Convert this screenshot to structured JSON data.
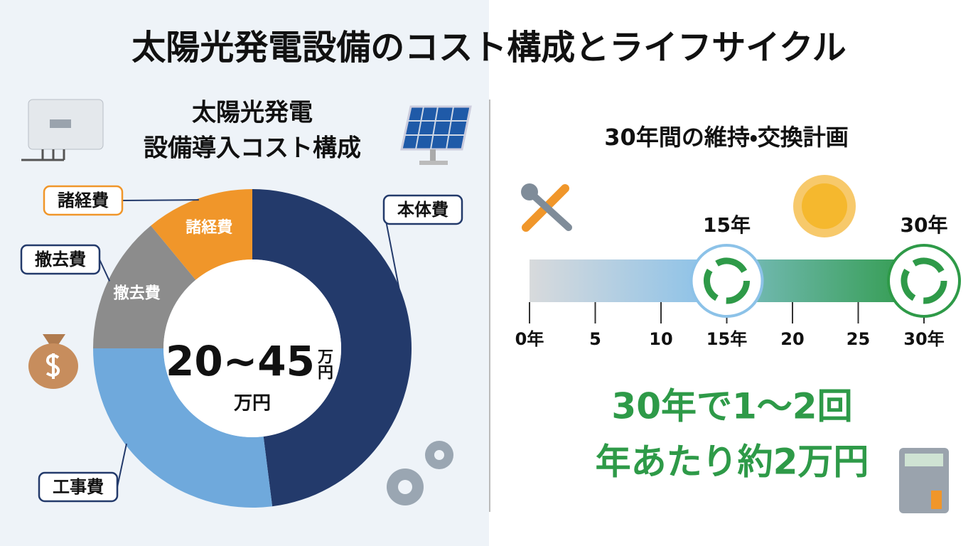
{
  "title": "太陽光発電設備のコスト構成とライフサイクル",
  "chart_data": [
    {
      "type": "donut",
      "title_lines": [
        "太陽光発電",
        "設備導入コスト構成"
      ],
      "categories": [
        "本体費",
        "工事費",
        "撤去費",
        "諸経費"
      ],
      "values": [
        48,
        27,
        14,
        11
      ],
      "colors": [
        "#233a6b",
        "#6fa9dc",
        "#8c8c8c",
        "#f0962a"
      ],
      "center_value": "20~45",
      "center_unit": "万円"
    },
    {
      "type": "timeline",
      "title": "30年間の維持・交換計画",
      "xlim": [
        0,
        30
      ],
      "xticks": [
        {
          "value": 0,
          "label": "0年"
        },
        5,
        10,
        {
          "value": 15,
          "label": "15年"
        },
        20,
        25,
        {
          "value": 30,
          "label": "30年"
        }
      ],
      "markers": {
        "x": [
          15,
          30
        ],
        "labels": [
          "15年",
          "30年"
        ]
      },
      "color": "#2e9a48"
    }
  ],
  "summary": [
    "30年で1～2回",
    "年あたり約2万円"
  ]
}
